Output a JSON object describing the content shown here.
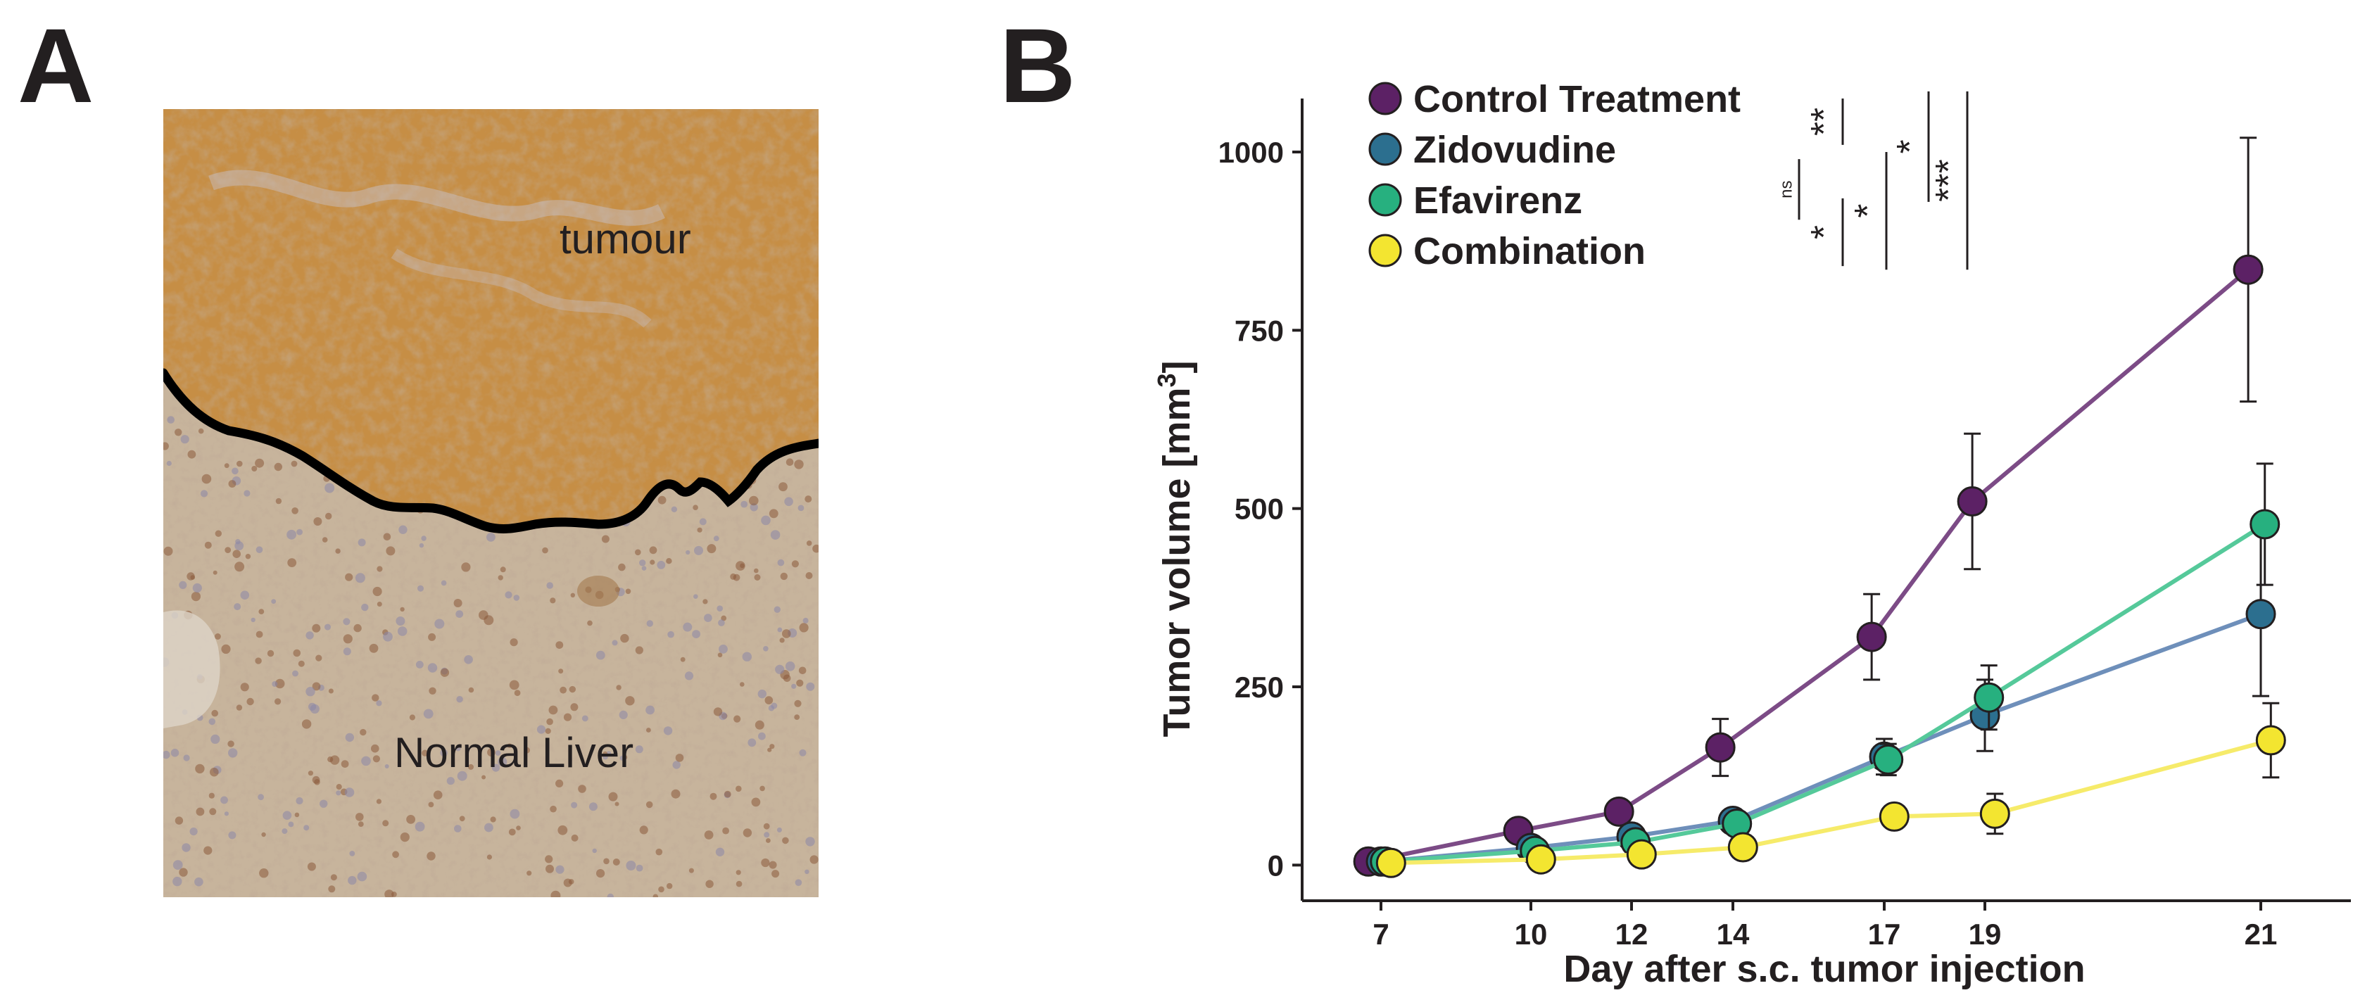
{
  "panels": {
    "a": {
      "label": "A",
      "region_labels": [
        "tumour",
        "Normal Liver"
      ],
      "colors": {
        "tumour": "#c98a3c",
        "liver": "#c9b49a",
        "boundary": "#000000"
      }
    },
    "b": {
      "label": "B"
    }
  },
  "chart_data": {
    "type": "line",
    "xlabel": "Day after s.c. tumor injection",
    "ylabel_main": "Tumor volume [mm",
    "ylabel_sup": "3",
    "ylabel_close": "]",
    "x": [
      7,
      10,
      12,
      14,
      17,
      19,
      21
    ],
    "x_ticks": [
      "7",
      "10",
      "12",
      "14",
      "17",
      "19",
      "21"
    ],
    "ylim": [
      -50,
      1075
    ],
    "y_ticks": [
      0,
      250,
      500,
      750,
      1000
    ],
    "grid": false,
    "legend_position": "top-left",
    "series": [
      {
        "name": "Control Treatment",
        "color": "#5c2165",
        "line": "#7c4b86",
        "values": [
          5,
          48,
          75,
          165,
          320,
          510,
          835
        ],
        "err": [
          3,
          10,
          15,
          40,
          60,
          95,
          185
        ],
        "offset": -0.25
      },
      {
        "name": "Zidovudine",
        "color": "#2c6f8f",
        "line": "#6e8fba",
        "values": [
          5,
          24,
          40,
          62,
          152,
          210,
          352
        ],
        "err": [
          3,
          8,
          10,
          15,
          25,
          50,
          115
        ],
        "offset": 0.0
      },
      {
        "name": "Efavirenz",
        "color": "#27b07f",
        "line": "#55c99a",
        "values": [
          5,
          20,
          32,
          58,
          148,
          235,
          478
        ],
        "err": [
          3,
          6,
          8,
          12,
          22,
          45,
          85
        ],
        "offset": 0.08
      },
      {
        "name": "Combination",
        "color": "#f3e530",
        "line": "#f6eb6a",
        "values": [
          3,
          8,
          15,
          25,
          68,
          72,
          175
        ],
        "err": [
          2,
          5,
          5,
          8,
          12,
          28,
          52
        ],
        "offset": 0.2
      }
    ],
    "significance": [
      {
        "label": "ns",
        "top": 905,
        "bottom": 990
      },
      {
        "label": "**",
        "top": 1010,
        "bottom": 1075
      },
      {
        "label": "*",
        "top": 840,
        "bottom": 935
      },
      {
        "label": "*",
        "top": 835,
        "bottom": 1000
      },
      {
        "label": "*",
        "top": 930,
        "bottom": 1085
      },
      {
        "label": "***",
        "top": 835,
        "bottom": 1085
      }
    ]
  }
}
